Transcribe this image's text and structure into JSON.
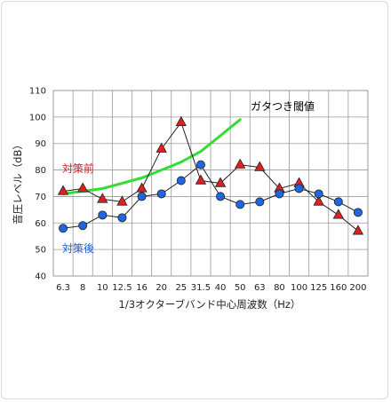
{
  "chart_data": {
    "type": "line",
    "title": "",
    "xlabel": "1/3オクターブバンド中心周波数（Hz）",
    "ylabel": "音圧レベル（dB）",
    "ylim": [
      40,
      110
    ],
    "yticks": [
      40,
      50,
      60,
      70,
      80,
      90,
      100,
      110
    ],
    "grid": true,
    "categories": [
      "6.3",
      "8",
      "10",
      "12.5",
      "16",
      "20",
      "25",
      "31.5",
      "40",
      "50",
      "63",
      "80",
      "100",
      "125",
      "160",
      "200"
    ],
    "series": [
      {
        "name": "対策前",
        "marker": "triangle",
        "color": "#d62020",
        "values": [
          72,
          73,
          69,
          68,
          73,
          88,
          98,
          76,
          75,
          82,
          81,
          73,
          75,
          68,
          63,
          57
        ]
      },
      {
        "name": "対策後",
        "marker": "circle",
        "color": "#1f5fd6",
        "values": [
          58,
          59,
          63,
          62,
          70,
          71,
          76,
          82,
          70,
          67,
          68,
          71,
          73,
          71,
          68,
          64
        ]
      },
      {
        "name": "ガタつき閾値",
        "marker": "none",
        "color": "#33dd33",
        "values": [
          71,
          72,
          73,
          75,
          77,
          80,
          83,
          87,
          93,
          99,
          null,
          null,
          null,
          null,
          null,
          null
        ]
      }
    ],
    "annotations": [
      {
        "text": "ガタつき閾値",
        "color": "#000000"
      },
      {
        "text": "対策前",
        "color": "#d62020"
      },
      {
        "text": "対策後",
        "color": "#1f5fd6"
      }
    ]
  }
}
